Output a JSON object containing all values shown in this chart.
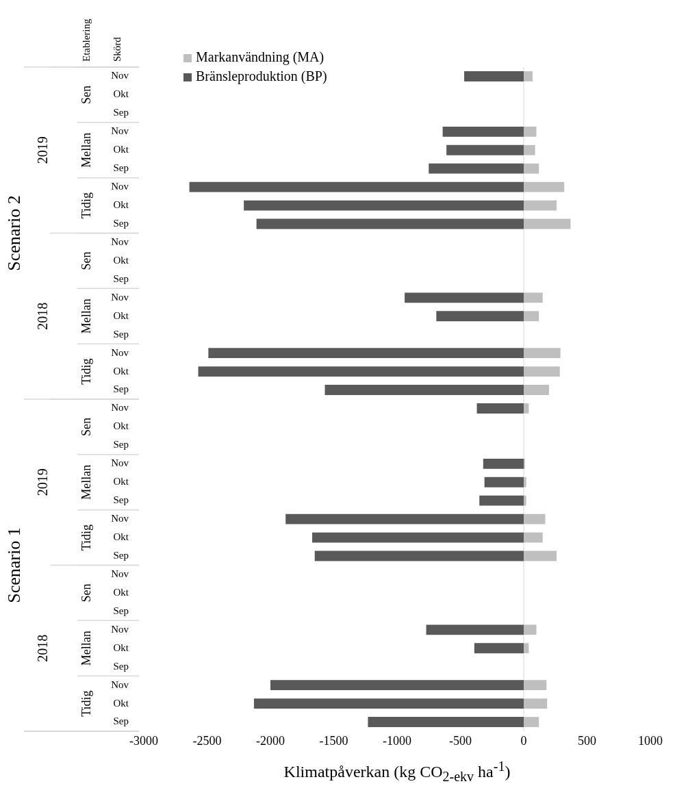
{
  "chart_data": {
    "type": "bar",
    "orientation": "horizontal",
    "stacked": true,
    "xlabel": "Klimatpåverkan (kg CO$_{2-ekv}$ ha$^{-1}$)",
    "categories": [
      "Nov",
      "Okt",
      "Sep",
      "Nov",
      "Okt",
      "Sep",
      "Nov",
      "Okt",
      "Sep",
      "Nov",
      "Okt",
      "Sep",
      "Nov",
      "Okt",
      "Sep",
      "Nov",
      "Okt",
      "Sep",
      "Nov",
      "Okt",
      "Sep",
      "Nov",
      "Okt",
      "Sep",
      "Nov",
      "Okt",
      "Sep",
      "Nov",
      "Okt",
      "Sep",
      "Nov",
      "Okt",
      "Sep",
      "Nov",
      "Okt",
      "Sep"
    ],
    "series": [
      {
        "name": "Markanvändning (MA)",
        "color": "#bfbfbf",
        "values": [
          70,
          null,
          null,
          100,
          90,
          120,
          320,
          260,
          370,
          null,
          null,
          null,
          150,
          120,
          null,
          290,
          285,
          200,
          40,
          null,
          null,
          10,
          20,
          20,
          170,
          150,
          260,
          null,
          null,
          null,
          100,
          40,
          null,
          180,
          185,
          120
        ]
      },
      {
        "name": "Bränsleproduktion (BP)",
        "color": "#595959",
        "values": [
          -470,
          null,
          null,
          -640,
          -610,
          -750,
          -2640,
          -2210,
          -2110,
          null,
          null,
          null,
          -940,
          -690,
          null,
          -2490,
          -2570,
          -1570,
          -370,
          null,
          null,
          -320,
          -310,
          -350,
          -1880,
          -1670,
          -1650,
          null,
          null,
          null,
          -770,
          -390,
          null,
          -2000,
          -2130,
          -1230
        ]
      }
    ],
    "xlim": [
      -3000,
      1000
    ],
    "xticks": [
      -3000,
      -2500,
      -2000,
      -1500,
      -1000,
      -500,
      0,
      500,
      1000
    ],
    "legend": "top left",
    "ref_lines": [
      {
        "axis": "x",
        "value": 0,
        "color": "#d9d9d9"
      }
    ],
    "annotations": [
      "Etablering",
      "Skörd",
      "Scenario 2",
      "Scenario 1",
      "2019",
      "2018",
      "2019",
      "2018",
      "Sen",
      "Mellan",
      "Tidig",
      "Sen",
      "Mellan",
      "Tidig",
      "Sen",
      "Mellan",
      "Tidig",
      "Sen",
      "Mellan",
      "Tidig"
    ]
  }
}
